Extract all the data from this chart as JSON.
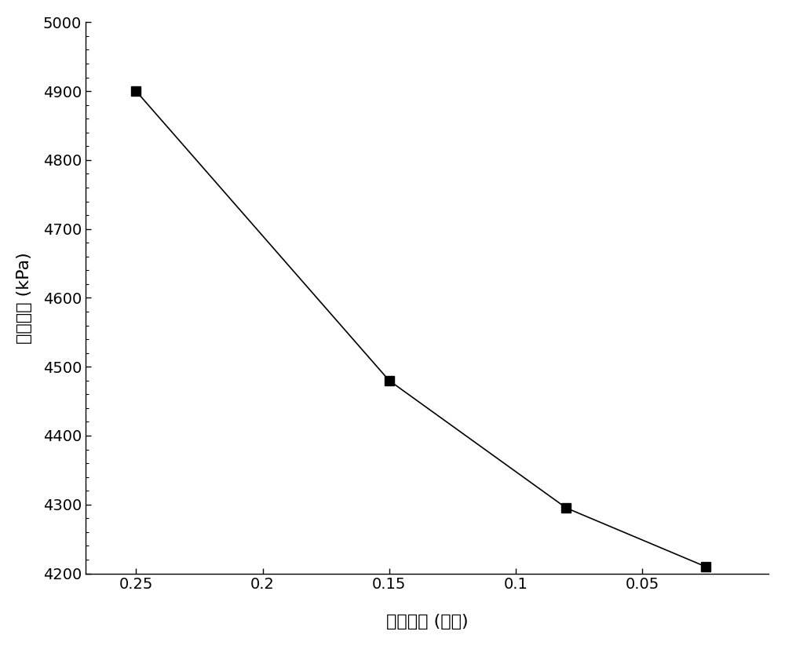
{
  "x": [
    0.25,
    0.15,
    0.08,
    0.025
  ],
  "y": [
    4900,
    4480,
    4295,
    4210
  ],
  "x_ticks": [
    0.25,
    0.2,
    0.15,
    0.1,
    0.05
  ],
  "x_tick_labels": [
    "0.25",
    "0.2",
    "0.15",
    "0.1",
    "0.05"
  ],
  "y_ticks": [
    4200,
    4300,
    4400,
    4500,
    4600,
    4700,
    4800,
    4900,
    5000
  ],
  "ylim": [
    4200,
    5000
  ],
  "xlim_left": 0.27,
  "xlim_right": 0.0,
  "xlabel": "网格尺寸 (小数)",
  "ylabel": "最大压力 (kPa)",
  "line_color": "#000000",
  "marker": "s",
  "marker_color": "#000000",
  "marker_size": 8,
  "line_width": 1.2,
  "background_color": "#ffffff",
  "tick_fontsize": 14,
  "label_fontsize": 16
}
